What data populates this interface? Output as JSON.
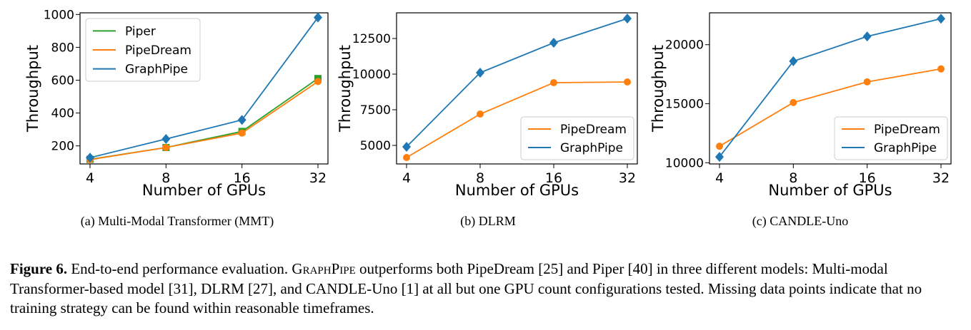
{
  "chart_data": [
    {
      "type": "line",
      "subcaption": "(a)  Multi-Modal Transformer (MMT)",
      "xlabel": "Number of GPUs",
      "ylabel": "Throughput",
      "categories": [
        "4",
        "8",
        "16",
        "32"
      ],
      "yticks": [
        200,
        400,
        600,
        800,
        1000
      ],
      "ylim": [
        90,
        1010
      ],
      "legend_position": "top-left",
      "series": [
        {
          "name": "Piper",
          "color": "#2ca02c",
          "marker": "square",
          "values": [
            118,
            190,
            288,
            610
          ]
        },
        {
          "name": "PipeDream",
          "color": "#ff7f0e",
          "marker": "circle",
          "values": [
            116,
            190,
            278,
            592
          ]
        },
        {
          "name": "GraphPipe",
          "color": "#1f77b4",
          "marker": "diamond",
          "values": [
            128,
            242,
            358,
            982
          ]
        }
      ]
    },
    {
      "type": "line",
      "subcaption": "(b)  DLRM",
      "xlabel": "Number of GPUs",
      "ylabel": "Throughput",
      "categories": [
        "4",
        "8",
        "16",
        "32"
      ],
      "yticks": [
        5000,
        7500,
        10000,
        12500
      ],
      "ylim": [
        3700,
        14300
      ],
      "legend_position": "bottom-right",
      "series": [
        {
          "name": "PipeDream",
          "color": "#ff7f0e",
          "marker": "circle",
          "values": [
            4150,
            7200,
            9400,
            9450
          ]
        },
        {
          "name": "GraphPipe",
          "color": "#1f77b4",
          "marker": "diamond",
          "values": [
            4900,
            10100,
            12200,
            13900
          ]
        }
      ]
    },
    {
      "type": "line",
      "subcaption": "(c)  CANDLE-Uno",
      "xlabel": "Number of GPUs",
      "ylabel": "Throughput",
      "categories": [
        "4",
        "8",
        "16",
        "32"
      ],
      "yticks": [
        10000,
        15000,
        20000
      ],
      "ylim": [
        9900,
        22700
      ],
      "legend_position": "bottom-right",
      "series": [
        {
          "name": "PipeDream",
          "color": "#ff7f0e",
          "marker": "circle",
          "values": [
            11400,
            15100,
            16850,
            17950
          ]
        },
        {
          "name": "GraphPipe",
          "color": "#1f77b4",
          "marker": "diamond",
          "values": [
            10500,
            18600,
            20700,
            22200
          ]
        }
      ]
    }
  ],
  "caption": {
    "label": "Figure 6.",
    "text_1": " End-to-end performance evaluation. ",
    "name_smallcaps": "GraphPipe",
    "text_2": " outperforms both PipeDream [25] and Piper [40] in three different models: Multi-modal Transformer-based model [31], DLRM [27], and CANDLE-Uno [1] at all but one GPU count configurations tested. Missing data points indicate that no training strategy can be found within reasonable timeframes."
  }
}
